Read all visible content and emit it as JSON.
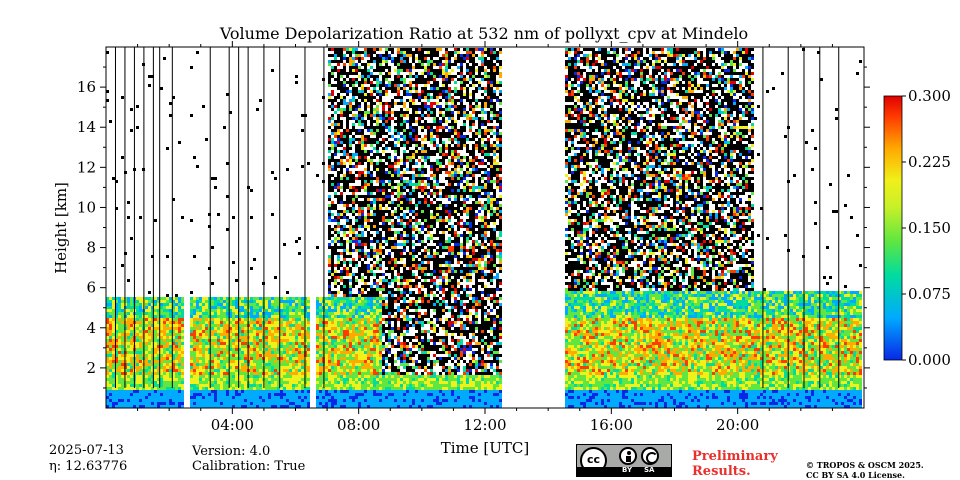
{
  "chart_data": {
    "type": "heatmap",
    "title": "Volume Depolarization Ratio at 532 nm of pollyxt_cpv at Mindelo",
    "xlabel": "Time [UTC]",
    "ylabel": "Height [km]",
    "xlim": [
      0,
      24
    ],
    "ylim": [
      0,
      18
    ],
    "x_ticks": [
      "04:00",
      "08:00",
      "12:00",
      "16:00",
      "20:00"
    ],
    "x_tick_values": [
      4,
      8,
      12,
      16,
      20
    ],
    "y_ticks": [
      "2",
      "4",
      "6",
      "8",
      "10",
      "12",
      "14",
      "16"
    ],
    "y_tick_values": [
      2,
      4,
      6,
      8,
      10,
      12,
      14,
      16
    ],
    "colorbar": {
      "min": 0.0,
      "max": 0.3,
      "ticks": [
        "0.000",
        "0.075",
        "0.150",
        "0.225",
        "0.300"
      ],
      "tick_values": [
        0.0,
        0.075,
        0.15,
        0.225,
        0.3
      ],
      "colors": [
        "#0828e6",
        "#00aaff",
        "#00dca0",
        "#60e640",
        "#f0f01a",
        "#ffaa00",
        "#ff3c00",
        "#e10000"
      ]
    },
    "no_data_gaps_utc": [
      [
        12.55,
        14.55
      ]
    ],
    "regions": [
      {
        "from": 0.0,
        "to": 12.55,
        "aerosol_top_km": 5.5
      },
      {
        "from": 14.55,
        "to": 24.0,
        "aerosol_top_km": 5.8
      }
    ]
  },
  "info": {
    "date": "2025-07-13",
    "eta": "η: 12.63776",
    "version": "Version: 4.0",
    "calibration": "Calibration: True"
  },
  "badges": {
    "cc_label": "cc",
    "by": "BY",
    "sa": "SA",
    "preliminary_line1": "Preliminary",
    "preliminary_line2": "Results.",
    "copyright_line1": "© TROPOS & OSCM 2025.",
    "copyright_line2": "CC BY SA 4.0 License."
  }
}
